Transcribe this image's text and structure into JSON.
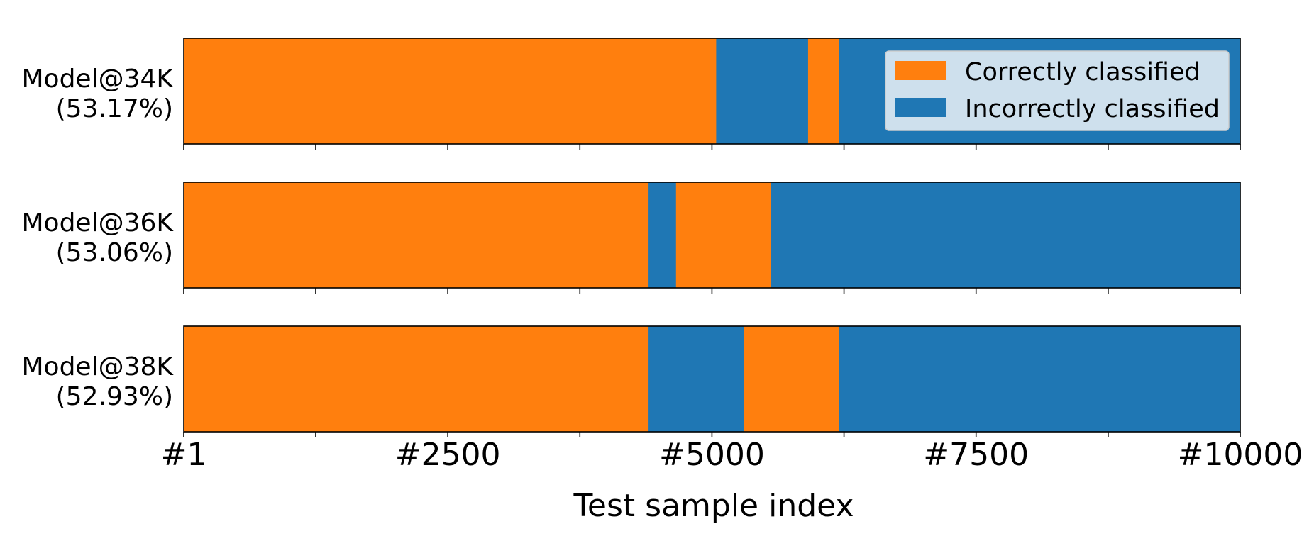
{
  "chart_data": {
    "type": "bar",
    "orientation": "horizontal-segments",
    "xlabel": "Test sample index",
    "xlim": [
      1,
      10000
    ],
    "x_ticks": [
      {
        "value": 1,
        "label": "#1"
      },
      {
        "value": 2500,
        "label": "#2500"
      },
      {
        "value": 5000,
        "label": "#5000"
      },
      {
        "value": 7500,
        "label": "#7500"
      },
      {
        "value": 10000,
        "label": "#10000"
      }
    ],
    "minor_ticks": [
      1250,
      3750,
      6250,
      8750
    ],
    "legend_position": "top-right",
    "legend": [
      {
        "name": "Correctly classified",
        "color": "#ff7f0e"
      },
      {
        "name": "Incorrectly classified",
        "color": "#1f77b4"
      }
    ],
    "rows": [
      {
        "label_line1": "Model@34K",
        "label_line2": "(53.17%)",
        "segments": [
          {
            "class": "correct",
            "start": 1,
            "end": 5040
          },
          {
            "class": "incorrect",
            "start": 5040,
            "end": 5910
          },
          {
            "class": "correct",
            "start": 5910,
            "end": 6200
          },
          {
            "class": "incorrect",
            "start": 6200,
            "end": 10000
          }
        ]
      },
      {
        "label_line1": "Model@36K",
        "label_line2": "(53.06%)",
        "segments": [
          {
            "class": "correct",
            "start": 1,
            "end": 4400
          },
          {
            "class": "incorrect",
            "start": 4400,
            "end": 4660
          },
          {
            "class": "correct",
            "start": 4660,
            "end": 5560
          },
          {
            "class": "incorrect",
            "start": 5560,
            "end": 10000
          }
        ]
      },
      {
        "label_line1": "Model@38K",
        "label_line2": "(52.93%)",
        "segments": [
          {
            "class": "correct",
            "start": 1,
            "end": 4400
          },
          {
            "class": "incorrect",
            "start": 4400,
            "end": 5300
          },
          {
            "class": "correct",
            "start": 5300,
            "end": 6200
          },
          {
            "class": "incorrect",
            "start": 6200,
            "end": 10000
          }
        ]
      }
    ]
  }
}
